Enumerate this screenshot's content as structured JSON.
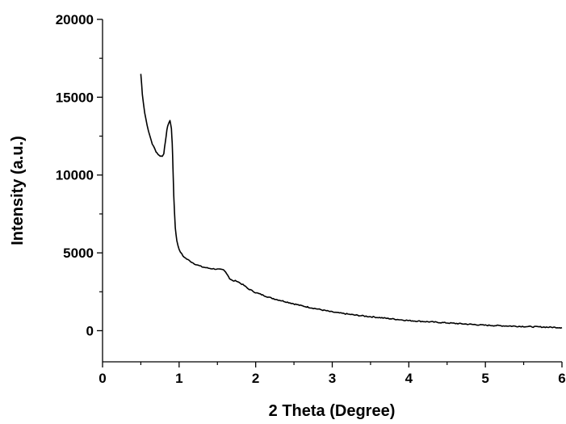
{
  "chart_data": {
    "type": "line",
    "title": "",
    "xlabel": "2 Theta (Degree)",
    "ylabel": "Intensity (a.u.)",
    "xlim": [
      0,
      6
    ],
    "ylim": [
      -2000,
      20000
    ],
    "xticks": [
      0,
      1,
      2,
      3,
      4,
      5,
      6
    ],
    "xtick_labels": [
      "0",
      "1",
      "2",
      "3",
      "4",
      "5",
      "6"
    ],
    "yticks": [
      0,
      5000,
      10000,
      15000,
      20000
    ],
    "ytick_labels": [
      "0",
      "5000",
      "10000",
      "15000",
      "20000"
    ],
    "grid": false,
    "legend": "none",
    "line_color": "#000000",
    "series": [
      {
        "x": [
          0.5,
          0.52,
          0.55,
          0.6,
          0.65,
          0.7,
          0.74,
          0.78,
          0.8,
          0.82,
          0.84,
          0.86,
          0.88,
          0.9,
          0.91,
          0.92,
          0.93,
          0.95,
          0.97,
          1.0,
          1.05,
          1.1,
          1.2,
          1.3,
          1.4,
          1.5,
          1.58,
          1.62,
          1.66,
          1.7,
          1.75,
          1.8,
          1.85,
          1.9,
          2.0,
          2.2,
          2.4,
          2.6,
          2.8,
          3.0,
          3.3,
          3.6,
          4.0,
          4.5,
          5.0,
          5.5,
          6.0
        ],
        "y": [
          16500,
          15200,
          14000,
          12800,
          12000,
          11500,
          11250,
          11200,
          11400,
          12100,
          12900,
          13300,
          13500,
          13000,
          12000,
          10500,
          8700,
          6600,
          5800,
          5200,
          4800,
          4600,
          4300,
          4100,
          4000,
          3950,
          3900,
          3700,
          3350,
          3200,
          3200,
          3050,
          2900,
          2700,
          2450,
          2100,
          1850,
          1600,
          1400,
          1200,
          1000,
          850,
          650,
          500,
          350,
          270,
          200
        ]
      }
    ]
  }
}
